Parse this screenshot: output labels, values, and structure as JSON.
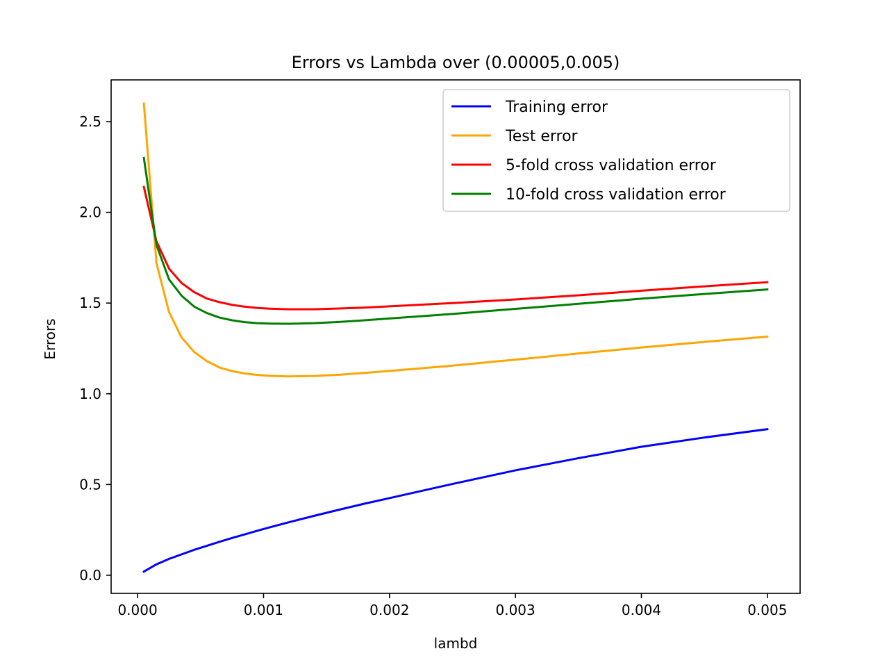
{
  "chart_data": {
    "type": "line",
    "title": "Errors vs Lambda over (0.00005,0.005)",
    "xlabel": "lambd",
    "ylabel": "Errors",
    "xlim": [
      -0.00021,
      0.00526
    ],
    "ylim": [
      -0.1,
      2.73
    ],
    "xticks": [
      0.0,
      0.001,
      0.002,
      0.003,
      0.004,
      0.005
    ],
    "xtick_labels": [
      "0.000",
      "0.001",
      "0.002",
      "0.003",
      "0.004",
      "0.005"
    ],
    "yticks": [
      0.0,
      0.5,
      1.0,
      1.5,
      2.0,
      2.5
    ],
    "ytick_labels": [
      "0.0",
      "0.5",
      "1.0",
      "1.5",
      "2.0",
      "2.5"
    ],
    "grid": false,
    "legend_position": "top-right",
    "x": [
      5e-05,
      0.00015,
      0.00025,
      0.00035,
      0.00045,
      0.00055,
      0.00065,
      0.00075,
      0.00085,
      0.00095,
      0.00105,
      0.0012,
      0.0014,
      0.0016,
      0.0018,
      0.002,
      0.0025,
      0.003,
      0.0035,
      0.004,
      0.0045,
      0.005
    ],
    "series": [
      {
        "name": "Training error",
        "color": "#0000ff",
        "values": [
          0.02,
          0.06,
          0.09,
          0.115,
          0.14,
          0.162,
          0.184,
          0.205,
          0.225,
          0.245,
          0.264,
          0.292,
          0.327,
          0.361,
          0.394,
          0.425,
          0.503,
          0.578,
          0.645,
          0.708,
          0.759,
          0.805
        ]
      },
      {
        "name": "Test error",
        "color": "#ffa500",
        "values": [
          2.6,
          1.72,
          1.45,
          1.31,
          1.23,
          1.18,
          1.145,
          1.125,
          1.112,
          1.104,
          1.099,
          1.096,
          1.098,
          1.105,
          1.115,
          1.126,
          1.155,
          1.188,
          1.222,
          1.255,
          1.286,
          1.315
        ]
      },
      {
        "name": "5-fold cross validation error",
        "color": "#ff0000",
        "values": [
          2.14,
          1.84,
          1.69,
          1.61,
          1.56,
          1.525,
          1.505,
          1.49,
          1.48,
          1.473,
          1.469,
          1.466,
          1.466,
          1.47,
          1.475,
          1.482,
          1.5,
          1.52,
          1.543,
          1.568,
          1.592,
          1.615
        ]
      },
      {
        "name": "10-fold cross validation error",
        "color": "#008000",
        "values": [
          2.3,
          1.82,
          1.63,
          1.54,
          1.48,
          1.445,
          1.42,
          1.405,
          1.395,
          1.389,
          1.387,
          1.386,
          1.389,
          1.396,
          1.405,
          1.415,
          1.44,
          1.468,
          1.496,
          1.524,
          1.55,
          1.575
        ]
      }
    ]
  }
}
